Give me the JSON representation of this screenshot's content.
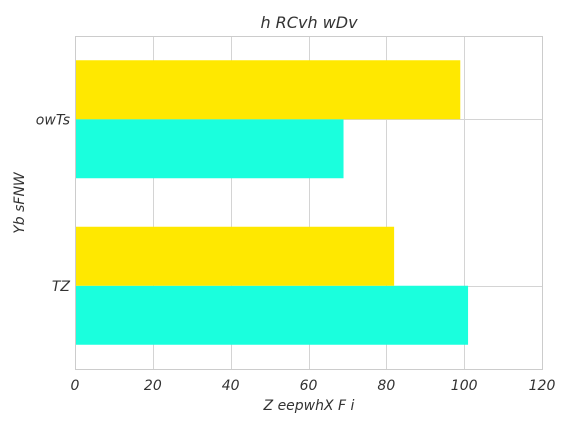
{
  "chart_data": {
    "type": "bar",
    "orientation": "horizontal",
    "title": "h RCvh wDv",
    "xlabel": "Z eepwhX F i",
    "ylabel": "Yb sFNW",
    "categories": [
      "TZ",
      "owTs"
    ],
    "series": [
      {
        "values": [
          101,
          69
        ],
        "color": "#1affdd"
      },
      {
        "values": [
          82,
          99
        ],
        "color": "#ffe800"
      }
    ],
    "xlim": [
      0,
      120
    ],
    "xticks": [
      0,
      20,
      40,
      60,
      80,
      100,
      120
    ],
    "grid": true
  }
}
